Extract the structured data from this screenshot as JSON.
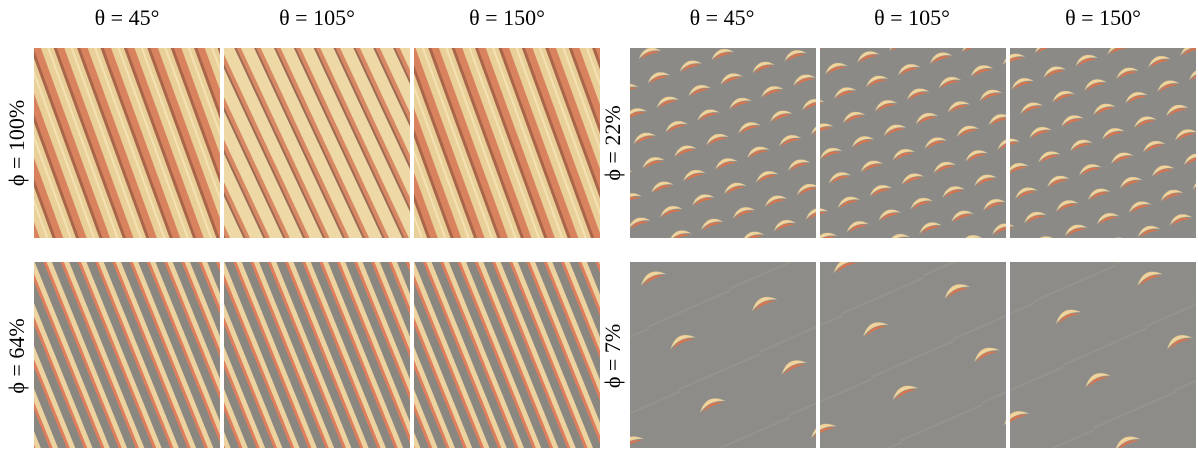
{
  "headers": [
    "θ = 45°",
    "θ = 105°",
    "θ = 150°",
    "θ = 45°",
    "θ = 105°",
    "θ = 150°"
  ],
  "row_labels": [
    "ϕ = 100%",
    "ϕ = 64%",
    "ϕ = 22%",
    "ϕ = 7%"
  ]
}
